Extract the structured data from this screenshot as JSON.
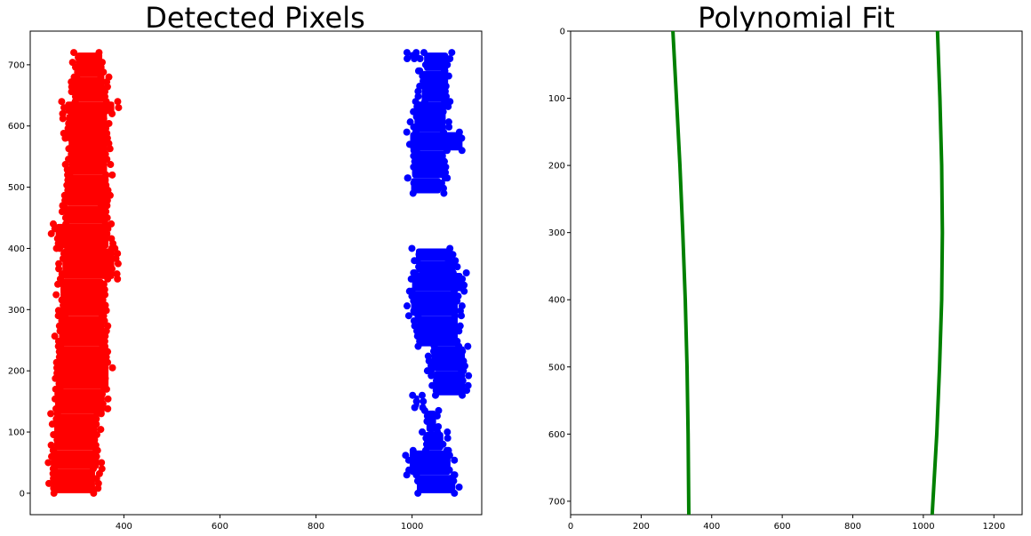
{
  "chart_data": [
    {
      "type": "scatter",
      "title": "Detected Pixels",
      "xlabel": "",
      "ylabel": "",
      "xlim": [
        205,
        1145
      ],
      "ylim": [
        -35,
        755
      ],
      "xticks": [
        400,
        600,
        800,
        1000
      ],
      "yticks": [
        0,
        100,
        200,
        300,
        400,
        500,
        600,
        700
      ],
      "grid": false,
      "legend": "none",
      "colors": {
        "left_lane": "#ff0000",
        "right_lane": "#0000ff"
      },
      "series": [
        {
          "color": "#ff0000",
          "bands": [
            {
              "y": [
                0,
                40
              ],
              "x": [
                250,
                340
              ]
            },
            {
              "y": [
                40,
                70
              ],
              "x": [
                248,
                348
              ]
            },
            {
              "y": [
                70,
                130
              ],
              "x": [
                255,
                345
              ]
            },
            {
              "y": [
                130,
                170
              ],
              "x": [
                258,
                360
              ]
            },
            {
              "y": [
                170,
                240
              ],
              "x": [
                262,
                368
              ]
            },
            {
              "y": [
                240,
                290
              ],
              "x": [
                265,
                360
              ]
            },
            {
              "y": [
                290,
                350
              ],
              "x": [
                268,
                358
              ]
            },
            {
              "y": [
                350,
                400
              ],
              "x": [
                272,
                380
              ]
            },
            {
              "y": [
                400,
                440
              ],
              "x": [
                258,
                368
              ]
            },
            {
              "y": [
                440,
                470
              ],
              "x": [
                276,
                362
              ]
            },
            {
              "y": [
                470,
                520
              ],
              "x": [
                280,
                368
              ]
            },
            {
              "y": [
                520,
                580
              ],
              "x": [
                285,
                365
              ]
            },
            {
              "y": [
                580,
                620
              ],
              "x": [
                280,
                365
              ]
            },
            {
              "y": [
                620,
                640
              ],
              "x": [
                278,
                380
              ]
            },
            {
              "y": [
                640,
                680
              ],
              "x": [
                295,
                360
              ]
            },
            {
              "y": [
                680,
                720
              ],
              "x": [
                300,
                355
              ]
            }
          ]
        },
        {
          "color": "#0000ff",
          "bands": [
            {
              "y": [
                0,
                30
              ],
              "x": [
                1010,
                1090
              ]
            },
            {
              "y": [
                30,
                70
              ],
              "x": [
                995,
                1080
              ]
            },
            {
              "y": [
                70,
                100
              ],
              "x": [
                1025,
                1065
              ]
            },
            {
              "y": [
                100,
                135
              ],
              "x": [
                1030,
                1050
              ]
            },
            {
              "y": [
                140,
                160
              ],
              "x": [
                1005,
                1015
              ]
            },
            {
              "y": [
                160,
                200
              ],
              "x": [
                1045,
                1110
              ]
            },
            {
              "y": [
                200,
                240
              ],
              "x": [
                1040,
                1110
              ]
            },
            {
              "y": [
                240,
                290
              ],
              "x": [
                1010,
                1095
              ]
            },
            {
              "y": [
                290,
                330
              ],
              "x": [
                998,
                1095
              ]
            },
            {
              "y": [
                330,
                360
              ],
              "x": [
                1000,
                1105
              ]
            },
            {
              "y": [
                360,
                380
              ],
              "x": [
                1010,
                1090
              ]
            },
            {
              "y": [
                380,
                400
              ],
              "x": [
                1008,
                1085
              ]
            },
            {
              "y": [
                490,
                515
              ],
              "x": [
                998,
                1060
              ]
            },
            {
              "y": [
                515,
                560
              ],
              "x": [
                1000,
                1070
              ]
            },
            {
              "y": [
                560,
                590
              ],
              "x": [
                996,
                1105
              ]
            },
            {
              "y": [
                590,
                640
              ],
              "x": [
                1005,
                1070
              ]
            },
            {
              "y": [
                640,
                690
              ],
              "x": [
                1020,
                1075
              ]
            },
            {
              "y": [
                690,
                720
              ],
              "x": [
                1025,
                1075
              ]
            },
            {
              "y": [
                710,
                720
              ],
              "x": [
                995,
                1005
              ]
            }
          ]
        }
      ]
    },
    {
      "type": "line",
      "title": "Polynomial Fit",
      "xlabel": "",
      "ylabel": "",
      "xlim": [
        0,
        1280
      ],
      "ylim": [
        720,
        0
      ],
      "xticks": [
        0,
        200,
        400,
        600,
        800,
        1000,
        1200
      ],
      "yticks": [
        0,
        100,
        200,
        300,
        400,
        500,
        600,
        700
      ],
      "grid": false,
      "legend": "none",
      "colors": {
        "fit_line": "#008000"
      },
      "series": [
        {
          "color": "#008000",
          "x": [
            290,
            300,
            310,
            318,
            325,
            330,
            333,
            335
          ],
          "y": [
            0,
            100,
            200,
            300,
            400,
            500,
            600,
            720
          ]
        },
        {
          "color": "#008000",
          "x": [
            1040,
            1047,
            1052,
            1054,
            1052,
            1046,
            1038,
            1025
          ],
          "y": [
            0,
            100,
            200,
            300,
            400,
            500,
            600,
            720
          ]
        }
      ]
    }
  ]
}
